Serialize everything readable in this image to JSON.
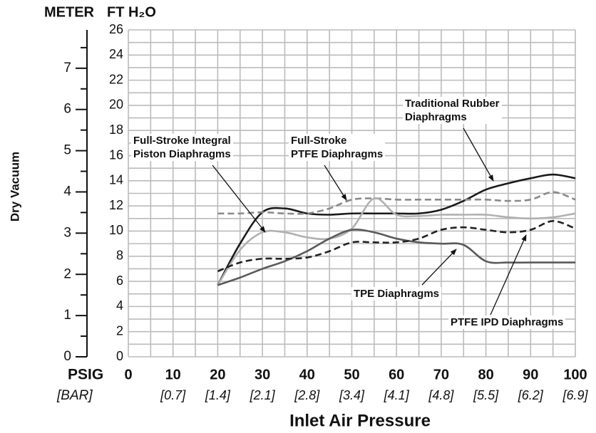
{
  "chart_data": {
    "type": "line",
    "y_axis_label": "Dry Vacuum",
    "x_axis_label": "Inlet Air Pressure",
    "y2_unit_label": "METER",
    "y_unit_label": "FT H₂O",
    "x_unit_label": "PSIG",
    "x_secondary_unit_label": "[BAR]",
    "x": [
      20,
      25,
      30,
      35,
      40,
      45,
      50,
      55,
      60,
      65,
      70,
      75,
      80,
      85,
      90,
      95,
      100
    ],
    "xlim": [
      0,
      100
    ],
    "xticks": [
      0,
      10,
      20,
      30,
      40,
      50,
      60,
      70,
      80,
      90,
      100
    ],
    "x_secondary_labels": [
      null,
      "[0.7]",
      "[1.4]",
      "[2.1]",
      "[2.8]",
      "[3.4]",
      "[4.1]",
      "[4.8]",
      "[5.5]",
      "[6.2]",
      "[6.9]"
    ],
    "x_grid": [
      0,
      5,
      10,
      15,
      20,
      25,
      30,
      35,
      40,
      45,
      50,
      55,
      60,
      65,
      70,
      75,
      80,
      85,
      90,
      95,
      100
    ],
    "ylim": [
      0,
      26
    ],
    "yticks": [
      0,
      2,
      4,
      6,
      8,
      10,
      12,
      14,
      16,
      18,
      20,
      22,
      24,
      26
    ],
    "y_grid": [
      0,
      1,
      2,
      3,
      4,
      5,
      6,
      7,
      8,
      9,
      10,
      11,
      12,
      13,
      14,
      15,
      16,
      17,
      18,
      19,
      20,
      21,
      22,
      23,
      24,
      25,
      26
    ],
    "y2lim": [
      0,
      7.93
    ],
    "y2ticks": [
      0,
      1,
      2,
      3,
      4,
      5,
      6,
      7
    ],
    "y2_minor_ticks": [
      0.5,
      1.5,
      2.5,
      3.5,
      4.5,
      5.5,
      6.5,
      7.5
    ],
    "grid": true,
    "series": [
      {
        "name": "Traditional Rubber\nDiaphragms",
        "color": "#1a1a1a",
        "dashed": false,
        "values": [
          5.7,
          9,
          11.5,
          11.8,
          11.4,
          11.3,
          11.4,
          11.4,
          11.4,
          11.4,
          11.7,
          12.4,
          13.3,
          13.8,
          14.2,
          14.5,
          14.2
        ]
      },
      {
        "name": "Full-Stroke\nPTFE Diaphragms",
        "color": "#8a8a8a",
        "dashed": true,
        "values": [
          11.4,
          11.4,
          11.5,
          11.4,
          11.4,
          11.8,
          12.5,
          12.6,
          12.5,
          12.5,
          12.5,
          12.5,
          12.5,
          12.4,
          12.5,
          13.1,
          12.5
        ]
      },
      {
        "name": "Full-Stroke Integral\nPiston Diaphragms",
        "color": "#b0b0b0",
        "dashed": false,
        "values": [
          5.7,
          8.5,
          9.9,
          9.9,
          9.5,
          9.4,
          10.2,
          12.6,
          11.3,
          11.2,
          11.3,
          11.3,
          11.3,
          11.1,
          11.0,
          11.1,
          11.4
        ]
      },
      {
        "name": "TPE Diaphragms",
        "color": "#5a5a5a",
        "dashed": false,
        "values": [
          5.7,
          6.3,
          7.0,
          7.6,
          8.4,
          9.4,
          10.1,
          9.9,
          9.4,
          9.1,
          9.0,
          8.9,
          7.6,
          7.5,
          7.5,
          7.5,
          7.5
        ]
      },
      {
        "name": "PTFE IPD Diaphragms",
        "color": "#222222",
        "dashed": true,
        "values": [
          6.8,
          7.5,
          7.8,
          7.8,
          7.9,
          8.4,
          9.1,
          9.1,
          9.1,
          9.4,
          10.1,
          10.3,
          10.1,
          9.9,
          10.1,
          10.8,
          10.2
        ]
      }
    ]
  }
}
